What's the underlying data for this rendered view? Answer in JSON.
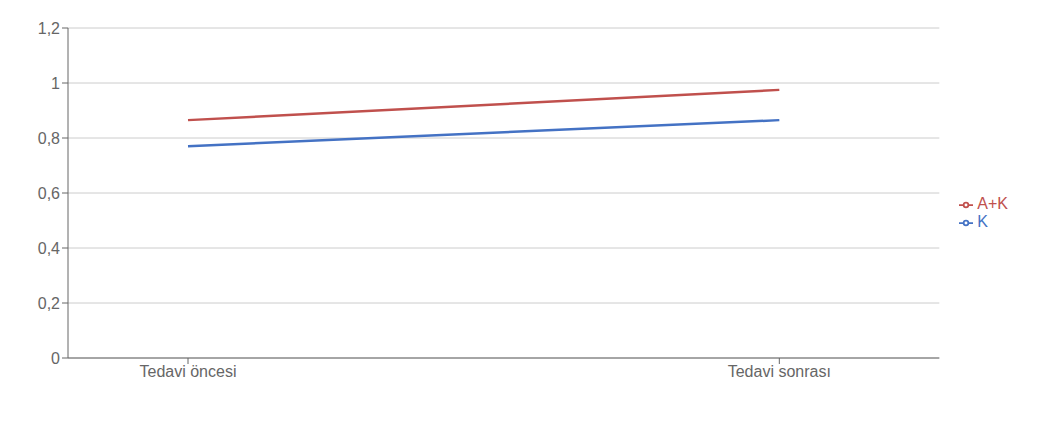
{
  "chart_data": {
    "type": "line",
    "categories": [
      "Tedavi öncesi",
      "Tedavi sonrası"
    ],
    "series": [
      {
        "name": "K",
        "color": "#4472C4",
        "values": [
          0.77,
          0.865
        ]
      },
      {
        "name": "A+K",
        "color": "#C0504D",
        "values": [
          0.865,
          0.975
        ]
      }
    ],
    "ylim": [
      0,
      1.2
    ],
    "yticks": [
      0,
      {
        "value": 0.2,
        "label": "0,2"
      },
      {
        "value": 0.4,
        "label": "0,4"
      },
      {
        "value": 0.6,
        "label": "0,6"
      },
      {
        "value": 0.8,
        "label": "0,8"
      },
      1,
      {
        "value": 1.2,
        "label": "1,2"
      }
    ],
    "grid": true,
    "legend": "right"
  }
}
